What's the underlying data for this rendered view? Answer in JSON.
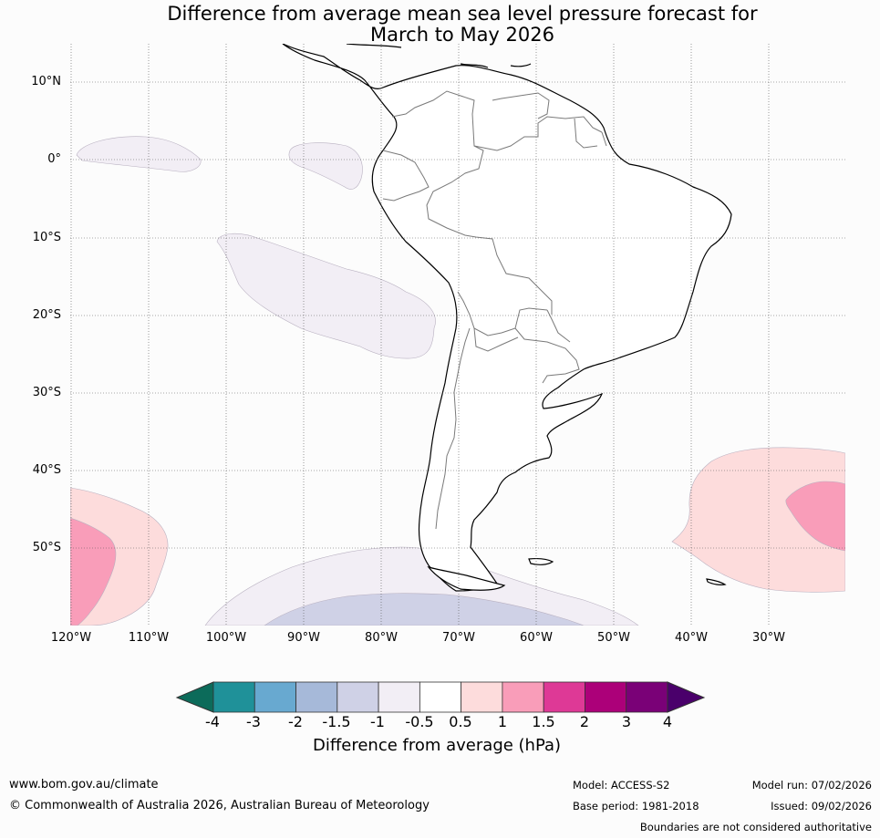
{
  "title": {
    "line1": "Difference from average mean sea level pressure forecast for",
    "line2": "March to May 2026"
  },
  "map": {
    "lat_labels": [
      "10°N",
      "0°",
      "10°S",
      "20°S",
      "30°S",
      "40°S",
      "50°S"
    ],
    "lon_labels": [
      "120°W",
      "110°W",
      "100°W",
      "90°W",
      "80°W",
      "70°W",
      "60°W",
      "50°W",
      "40°W",
      "30°W"
    ],
    "anomaly_regions": [
      {
        "name": "equatorial-east-pacific",
        "category": "-1 to -0.5"
      },
      {
        "name": "galapagos-area",
        "category": "-1 to -0.5"
      },
      {
        "name": "southeast-pacific",
        "category": "-1 to -0.5"
      },
      {
        "name": "southern-ocean-light",
        "category": "-1 to -0.5"
      },
      {
        "name": "southern-ocean-medium",
        "category": "-1.5 to -1"
      },
      {
        "name": "southwest-pacific-light",
        "category": "0.5 to 1"
      },
      {
        "name": "southwest-pacific-pink",
        "category": "1 to 1.5"
      },
      {
        "name": "south-atlantic-light",
        "category": "0.5 to 1"
      },
      {
        "name": "south-atlantic-pink",
        "category": "1 to 1.5"
      }
    ]
  },
  "colorbar": {
    "ticks": [
      "-4",
      "-3",
      "-2",
      "-1.5",
      "-1",
      "-0.5",
      "0.5",
      "1",
      "1.5",
      "2",
      "3",
      "4"
    ],
    "colors": [
      "#1f9199",
      "#68a9d0",
      "#a6b9d9",
      "#cfd1e6",
      "#f2eef5",
      "#ffffff",
      "#fddcdc",
      "#f99db9",
      "#de3996",
      "#ac0079",
      "#7a0177"
    ],
    "low_extend_color": "#0c6b5a",
    "high_extend_color": "#4a006b",
    "label": "Difference from average (hPa)"
  },
  "colors": {
    "land_fill": "#ffffff",
    "coast": "#000000",
    "border": "#7a7a7a",
    "grid": "#555555"
  },
  "footer": {
    "site": "www.bom.gov.au/climate",
    "copyright": "© Commonwealth of Australia 2026, Australian Bureau of Meteorology",
    "model": "Model: ACCESS-S2",
    "base_period": "Base period: 1981-2018",
    "model_run": "Model run: 07/02/2026",
    "issued": "Issued: 09/02/2026",
    "disclaimer": "Boundaries are not considered authoritative"
  }
}
